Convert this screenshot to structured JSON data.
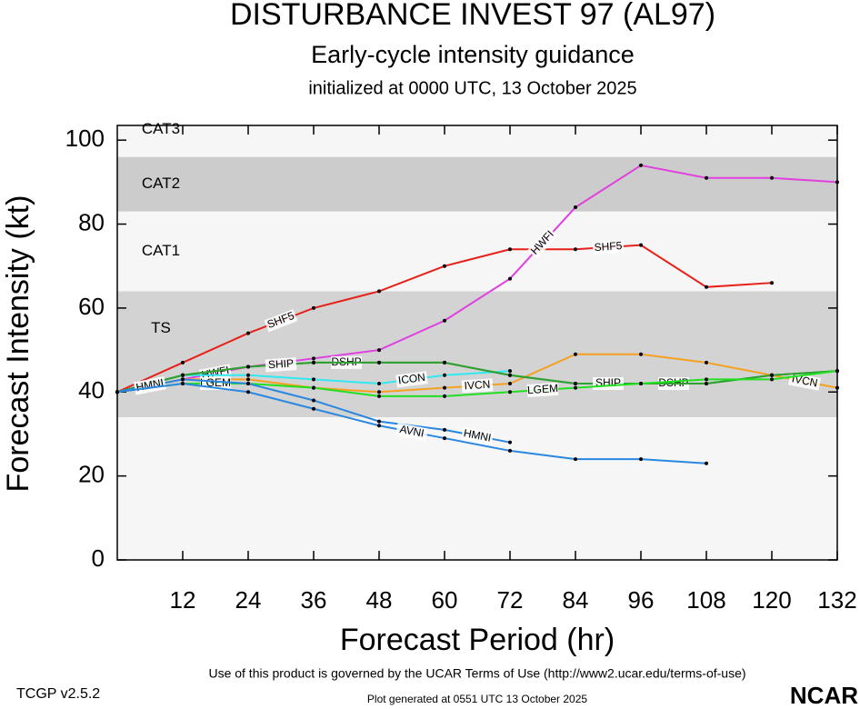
{
  "chart_data": {
    "type": "line",
    "title": "DISTURBANCE INVEST 97 (AL97)",
    "subtitle": "Early-cycle intensity guidance",
    "initialized": "initialized at 0000 UTC, 13 October 2025",
    "xlabel": "Forecast Period (hr)",
    "ylabel": "Forecast Intensity (kt)",
    "xlim": [
      0,
      132
    ],
    "ylim": [
      0,
      103.5
    ],
    "xticks": [
      12,
      24,
      36,
      48,
      60,
      72,
      84,
      96,
      108,
      120,
      132
    ],
    "yticks": [
      0,
      20,
      40,
      60,
      80,
      100
    ],
    "bands": [
      {
        "label": "TS",
        "from": 34,
        "to": 64,
        "color": "#d3d3d3"
      },
      {
        "label": "CAT1",
        "from": 64,
        "to": 83,
        "color": "#f6f6f6"
      },
      {
        "label": "CAT2",
        "from": 83,
        "to": 96,
        "color": "#cccccc"
      },
      {
        "label": "CAT3",
        "from": 96,
        "to": 103.5,
        "color": "#f6f6f6"
      }
    ],
    "background": "#f6f6f6",
    "x": [
      0,
      12,
      24,
      36,
      48,
      60,
      72,
      84,
      96,
      108,
      120,
      132
    ],
    "series": [
      {
        "name": "SHF5",
        "color": "#e8201a",
        "values": [
          40,
          47,
          54,
          60,
          64,
          70,
          74,
          74,
          75,
          65,
          66,
          null
        ]
      },
      {
        "name": "HWFI",
        "color": "#e040e0",
        "values": [
          40,
          43,
          46,
          48,
          50,
          57,
          67,
          84,
          94,
          91,
          91,
          90
        ]
      },
      {
        "name": "IVCN",
        "color": "#f5a020",
        "values": [
          40,
          43,
          43,
          41,
          40,
          41,
          42,
          49,
          49,
          47,
          44,
          41
        ]
      },
      {
        "name": "ICON",
        "color": "#30e8f0",
        "values": [
          40,
          44,
          44,
          43,
          42,
          44,
          45,
          null,
          null,
          null,
          null,
          null
        ]
      },
      {
        "name": "DSHP",
        "color": "#30a030",
        "values": [
          40,
          44,
          46,
          47,
          47,
          47,
          44,
          42,
          42,
          42,
          44,
          45
        ]
      },
      {
        "name": "SHIP",
        "color": "#30a030",
        "values": [
          40,
          44,
          46,
          47,
          47,
          47,
          44,
          42,
          42,
          42,
          44,
          45
        ]
      },
      {
        "name": "LGEM",
        "color": "#20e020",
        "values": [
          40,
          42,
          42,
          41,
          39,
          39,
          40,
          41,
          42,
          43,
          43,
          45
        ]
      },
      {
        "name": "HMNI",
        "color": "#2a88e0",
        "values": [
          40,
          43,
          42,
          38,
          33,
          31,
          28,
          null,
          null,
          null,
          null,
          null
        ]
      },
      {
        "name": "AVNI",
        "color": "#2a88e0",
        "values": [
          40,
          42,
          40,
          36,
          32,
          29,
          26,
          24,
          24,
          23,
          null,
          null
        ]
      }
    ],
    "terms": "Use of this product is governed by the UCAR Terms of Use (http://www2.ucar.edu/terms-of-use)",
    "version": "TCGP v2.5.2",
    "generated": "Plot generated at 0551 UTC   13 October 2025",
    "logo": "NCAR"
  }
}
